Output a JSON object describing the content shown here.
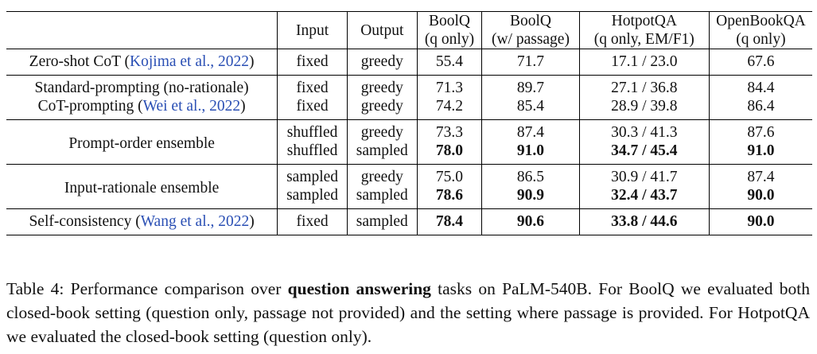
{
  "headers": {
    "method": "",
    "input": "Input",
    "output": "Output",
    "boolq_closed": [
      "BoolQ",
      "(q only)"
    ],
    "boolq_passage": [
      "BoolQ",
      "(w/ passage)"
    ],
    "hotpot": [
      "HotpotQA",
      "(q only, EM/F1)"
    ],
    "openbook": [
      "OpenBookQA",
      "(q only)"
    ]
  },
  "rows": {
    "zeroshot": {
      "method_prefix": "Zero-shot CoT (",
      "cite": "Kojima et al., 2022",
      "method_suffix": ")",
      "input": "fixed",
      "output": "greedy",
      "boolq": "55.4",
      "boolq_p": "71.7",
      "hotpot": "17.1 / 23.0",
      "obqa": "67.6"
    },
    "standard": {
      "method": "Standard-prompting (no-rationale)",
      "input": "fixed",
      "output": "greedy",
      "boolq": "71.3",
      "boolq_p": "89.7",
      "hotpot": "27.1 / 36.8",
      "obqa": "84.4"
    },
    "cot": {
      "method_prefix": "CoT-prompting (",
      "cite": "Wei et al., 2022",
      "method_suffix": ")",
      "input": "fixed",
      "output": "greedy",
      "boolq": "74.2",
      "boolq_p": "85.4",
      "hotpot": "28.9 / 39.8",
      "obqa": "86.4"
    },
    "prompt_order": {
      "method": "Prompt-order ensemble",
      "a": {
        "input": "shuffled",
        "output": "greedy",
        "boolq": "73.3",
        "boolq_p": "87.4",
        "hotpot": "30.3 / 41.3",
        "obqa": "87.6"
      },
      "b": {
        "input": "shuffled",
        "output": "sampled",
        "boolq": "78.0",
        "boolq_p": "91.0",
        "hotpot": "34.7 / 45.4",
        "obqa": "91.0"
      }
    },
    "input_rationale": {
      "method": "Input-rationale ensemble",
      "a": {
        "input": "sampled",
        "output": "greedy",
        "boolq": "75.0",
        "boolq_p": "86.5",
        "hotpot": "30.9 / 41.7",
        "obqa": "87.4"
      },
      "b": {
        "input": "sampled",
        "output": "sampled",
        "boolq": "78.6",
        "boolq_p": "90.9",
        "hotpot": "32.4 / 43.7",
        "obqa": "90.0"
      }
    },
    "self_consistency": {
      "method_prefix": "Self-consistency (",
      "cite": "Wang et al., 2022",
      "method_suffix": ")",
      "input": "fixed",
      "output": "sampled",
      "boolq": "78.4",
      "boolq_p": "90.6",
      "hotpot": "33.8 / 44.6",
      "obqa": "90.0"
    }
  },
  "caption": {
    "lead": "Table 4: Performance comparison over ",
    "bold": "question answering",
    "rest": " tasks on PaLM-540B. For BoolQ we evaluated both closed-book setting (question only, passage not provided) and the setting where passage is provided. For HotpotQA we evaluated the closed-book setting (question only)."
  },
  "colors": {
    "citation": "#2a4fb4",
    "text": "#111111"
  }
}
